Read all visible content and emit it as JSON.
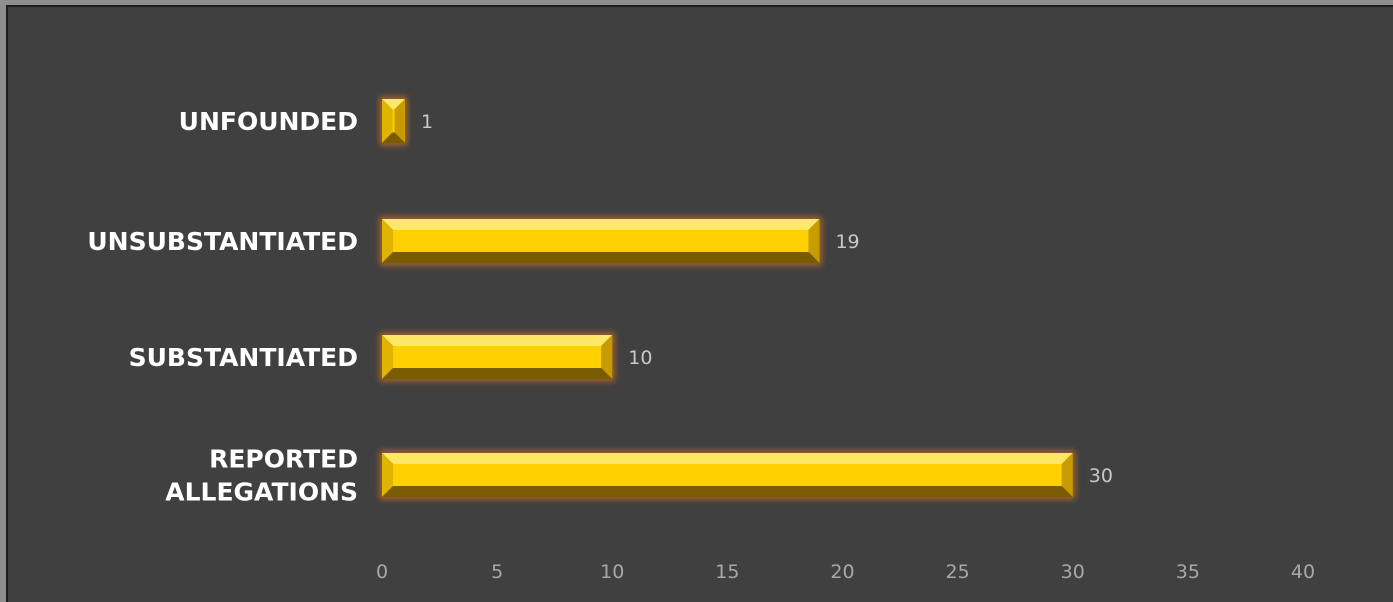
{
  "chart_data": {
    "type": "bar",
    "orientation": "horizontal",
    "categories": [
      "UNFOUNDED",
      "UNSUBSTANTIATED",
      "SUBSTANTIATED",
      "REPORTED ALLEGATIONS"
    ],
    "values": [
      1,
      19,
      10,
      30
    ],
    "xlim": [
      0,
      40
    ],
    "x_ticks": [
      "0",
      "5",
      "10",
      "15",
      "20",
      "25",
      "30",
      "35",
      "40"
    ],
    "grid": false,
    "legend": "none",
    "colors": {
      "bar_face": "#ffd000",
      "bar_dark": "#8a6a00",
      "bar_glow": "#a8652a",
      "background": "#404040"
    }
  }
}
